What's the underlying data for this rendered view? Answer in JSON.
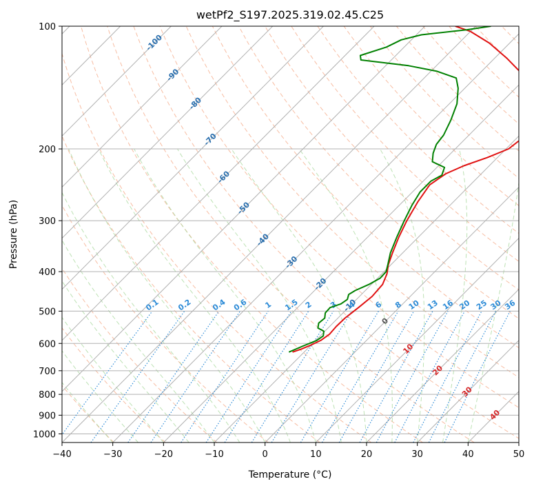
{
  "chart_data": {
    "type": "line",
    "subtype": "skew-T log-p diagram",
    "title": "wetPf2_S197.2025.319.02.45.C25",
    "xlabel": "Temperature (°C)",
    "ylabel": "Pressure (hPa)",
    "xlim": [
      -40,
      50
    ],
    "ylim": [
      1050,
      100
    ],
    "y_scale": "log",
    "x_ticks": [
      "−40",
      "−30",
      "−20",
      "−10",
      "0",
      "10",
      "20",
      "30",
      "40",
      "50"
    ],
    "x_tick_values": [
      -40,
      -30,
      -20,
      -10,
      0,
      10,
      20,
      30,
      40,
      50
    ],
    "y_ticks": [
      "100",
      "200",
      "300",
      "400",
      "500",
      "600",
      "700",
      "800",
      "900",
      "1000"
    ],
    "y_tick_values": [
      100,
      200,
      300,
      400,
      500,
      600,
      700,
      800,
      900,
      1000
    ],
    "grid": true,
    "series": [
      {
        "role": "temperature",
        "color": "#e01010",
        "points": [
          [
            -12.3,
            630
          ],
          [
            -11.2,
            620
          ],
          [
            -10.0,
            605
          ],
          [
            -9.0,
            590
          ],
          [
            -8.5,
            570
          ],
          [
            -8.7,
            545
          ],
          [
            -8.6,
            520
          ],
          [
            -8.0,
            490
          ],
          [
            -7.5,
            460
          ],
          [
            -7.8,
            430
          ],
          [
            -9.0,
            405
          ],
          [
            -10.5,
            385
          ],
          [
            -12.0,
            360
          ],
          [
            -13.8,
            330
          ],
          [
            -15.5,
            300
          ],
          [
            -17.0,
            270
          ],
          [
            -18.0,
            245
          ],
          [
            -17.0,
            230
          ],
          [
            -15.0,
            220
          ],
          [
            -12.0,
            210
          ],
          [
            -9.5,
            200
          ],
          [
            -9.0,
            190
          ],
          [
            -10.0,
            180
          ],
          [
            -11.0,
            170
          ],
          [
            -12.8,
            160
          ],
          [
            -15.0,
            150
          ],
          [
            -18.0,
            140
          ],
          [
            -22.0,
            130
          ],
          [
            -27.5,
            120
          ],
          [
            -34.0,
            110
          ],
          [
            -40.0,
            103
          ],
          [
            -44.0,
            100
          ]
        ]
      },
      {
        "role": "dewpoint",
        "color": "#008000",
        "points": [
          [
            -13.0,
            630
          ],
          [
            -11.5,
            610
          ],
          [
            -9.8,
            590
          ],
          [
            -9.4,
            575
          ],
          [
            -10.2,
            560
          ],
          [
            -12.0,
            550
          ],
          [
            -12.8,
            535
          ],
          [
            -12.6,
            520
          ],
          [
            -13.5,
            505
          ],
          [
            -13.6,
            490
          ],
          [
            -12.2,
            480
          ],
          [
            -11.8,
            468
          ],
          [
            -12.5,
            455
          ],
          [
            -12.0,
            445
          ],
          [
            -10.5,
            430
          ],
          [
            -9.5,
            415
          ],
          [
            -9.6,
            400
          ],
          [
            -10.6,
            385
          ],
          [
            -12.4,
            360
          ],
          [
            -14.2,
            330
          ],
          [
            -16.0,
            300
          ],
          [
            -17.5,
            275
          ],
          [
            -18.5,
            255
          ],
          [
            -18.5,
            240
          ],
          [
            -17.5,
            232
          ],
          [
            -18.5,
            222
          ],
          [
            -22.0,
            215
          ],
          [
            -23.5,
            205
          ],
          [
            -24.6,
            195
          ],
          [
            -25.0,
            185
          ],
          [
            -26.5,
            170
          ],
          [
            -28.5,
            155
          ],
          [
            -31.3,
            142
          ],
          [
            -33.7,
            134
          ],
          [
            -38.8,
            129
          ],
          [
            -45.5,
            125
          ],
          [
            -56.0,
            121
          ],
          [
            -57.0,
            118
          ],
          [
            -53.5,
            112.5
          ],
          [
            -52.0,
            108
          ],
          [
            -49.0,
            105
          ],
          [
            -41.0,
            102
          ],
          [
            -37.0,
            100
          ]
        ]
      }
    ],
    "isotherm_labels": [
      "-100",
      "-90",
      "-80",
      "-70",
      "-60",
      "-50",
      "-40",
      "-30",
      "-20",
      "-10",
      "0",
      "10",
      "20",
      "30",
      "40"
    ],
    "mixing_ratio_labels": [
      "0.1",
      "0.2",
      "0.4",
      "0.6",
      "1",
      "1.5",
      "2",
      "3",
      "4",
      "6",
      "8",
      "10",
      "13",
      "16",
      "20",
      "25",
      "30",
      "36"
    ]
  },
  "colors": {
    "temperature": "#e01010",
    "dewpoint": "#008000",
    "grid": "#b0b0b0",
    "dry_adiabat": "#f4a582",
    "moist_adiabat": "#a6d79a",
    "mixing_ratio": "#2b8ad6",
    "isotherm_label_cold": "#2a6fae",
    "isotherm_label_warm": "#d62728"
  }
}
